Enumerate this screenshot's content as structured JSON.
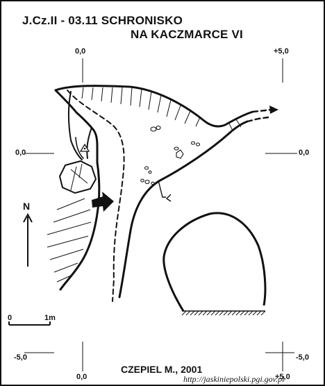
{
  "header": {
    "title_line1": "J.Cz.II - 03.11 SCHRONISKO",
    "title_line2": "NA KACZMARCE VI"
  },
  "grid_labels": {
    "top_left": "0,0",
    "top_right": "+5,0",
    "mid_left": "0,0",
    "mid_right": "0,0",
    "bottom_left_y": "-5,0",
    "bottom_right_y": "-5,0",
    "bottom_x_left": "0,0",
    "bottom_x_right": "+5,0"
  },
  "north_arrow": {
    "label": "N"
  },
  "scale_bar": {
    "left_label": "0",
    "right_label": "1m"
  },
  "footer": {
    "author": "CZEPIEL M., 2001",
    "website": "http://jaskiniepolski.pgi.gov.pl"
  }
}
